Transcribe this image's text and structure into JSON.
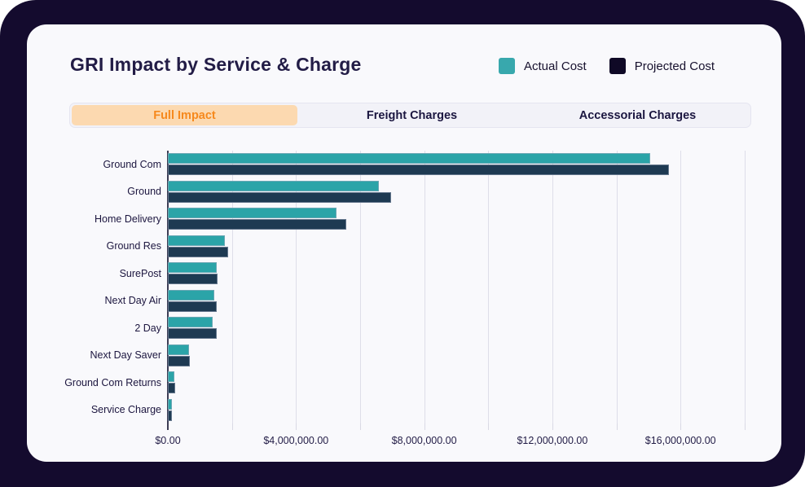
{
  "page": {
    "background_dark": "#140b2e",
    "card_background": "#f9f9fc"
  },
  "header": {
    "title": "GRI Impact by Service & Charge"
  },
  "legend": {
    "items": [
      {
        "label": "Actual Cost",
        "color": "#38a8ad"
      },
      {
        "label": "Projected Cost",
        "color": "#0f0926"
      }
    ]
  },
  "tabs": [
    {
      "label": "Full Impact",
      "active": true,
      "active_bg": "#fcd9b0",
      "active_text": "#f6891d"
    },
    {
      "label": "Freight Charges",
      "active": false
    },
    {
      "label": "Accessorial Charges",
      "active": false
    }
  ],
  "chart_data": {
    "type": "bar",
    "orientation": "horizontal",
    "title": "GRI Impact by Service & Charge",
    "categories": [
      "Ground Com",
      "Ground",
      "Home Delivery",
      "Ground Res",
      "SurePost",
      "Next Day Air",
      "2 Day",
      "Next Day Saver",
      "Ground Com Returns",
      "Service Charge"
    ],
    "series": [
      {
        "name": "Actual Cost",
        "color": "#2ba4a8",
        "values": [
          15050000,
          6580000,
          5270000,
          1780000,
          1530000,
          1450000,
          1410000,
          660000,
          210000,
          125000
        ]
      },
      {
        "name": "Projected Cost",
        "color": "#1e3a52",
        "values": [
          15650000,
          6960000,
          5570000,
          1890000,
          1540000,
          1520000,
          1530000,
          680000,
          220000,
          120000
        ]
      }
    ],
    "x_axis": {
      "tick_labels": [
        "$0.00",
        "$4,000,000.00",
        "$8,000,000.00",
        "$12,000,000.00",
        "$16,000,000.00"
      ],
      "tick_values": [
        0,
        4000000,
        8000000,
        12000000,
        16000000
      ],
      "gridline_step": 2000000,
      "min": 0,
      "max": 18000000
    },
    "legend_position": "top-right",
    "grid": true
  }
}
